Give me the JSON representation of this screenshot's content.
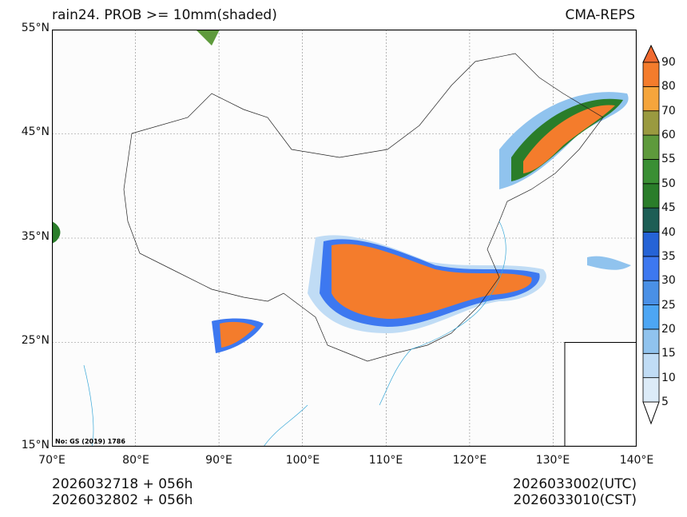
{
  "header": {
    "title": "rain24. PROB >= 10mm(shaded)",
    "brand": "CMA-REPS"
  },
  "map": {
    "lat_ticks": [
      "55°N",
      "45°N",
      "35°N",
      "25°N",
      "15°N"
    ],
    "lon_ticks": [
      "70°E",
      "80°E",
      "90°E",
      "100°E",
      "110°E",
      "120°E",
      "130°E",
      "140°E"
    ],
    "lon_range": [
      70,
      140
    ],
    "lat_range": [
      15,
      55
    ],
    "approval_no": "No: GS (2019) 1786"
  },
  "colorbar": {
    "labels": [
      "5",
      "10",
      "15",
      "20",
      "25",
      "30",
      "35",
      "40",
      "45",
      "50",
      "55",
      "60",
      "70",
      "80",
      "90"
    ],
    "colors": [
      "#dcebf8",
      "#c0dcf5",
      "#90c3ee",
      "#4da6f4",
      "#4a90e6",
      "#3d78f0",
      "#2563d6",
      "#1d5e55",
      "#2a7d2a",
      "#3a8f34",
      "#5e9a3c",
      "#9a9a40",
      "#f5a53c",
      "#f47c2c"
    ],
    "over_color": "#f06a30",
    "under_color": "#ffffff"
  },
  "footer": {
    "init_utc": "2026032718  +  056h",
    "init_cst": "2026032802  +  056h",
    "valid_utc": "2026033002(UTC)",
    "valid_cst": "2026033010(CST)"
  }
}
